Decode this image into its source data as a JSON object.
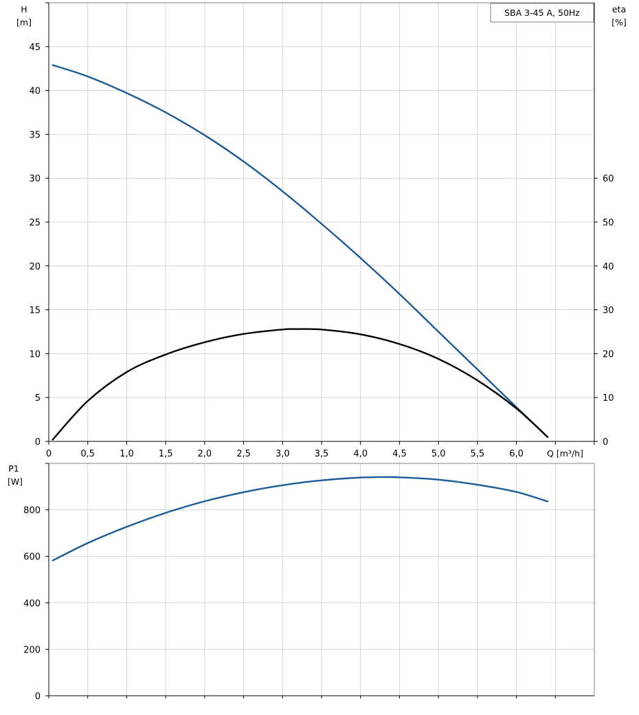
{
  "chart_data": [
    {
      "type": "line",
      "panel": "head-efficiency",
      "legend": "SBA 3-45 A, 50Hz",
      "legend_placement": "top-right",
      "xlabel": "Q [m³/h]",
      "xlim": [
        0,
        7.0
      ],
      "x_ticks": [
        "0",
        "0,5",
        "1,0",
        "1,5",
        "2,0",
        "2,5",
        "3,0",
        "3,5",
        "4,0",
        "4,5",
        "5,0",
        "5,5",
        "6,0"
      ],
      "x_tick_values": [
        0,
        0.5,
        1.0,
        1.5,
        2.0,
        2.5,
        3.0,
        3.5,
        4.0,
        4.5,
        5.0,
        5.5,
        6.0
      ],
      "y_left": {
        "label": "H",
        "unit": "[m]",
        "ylim": [
          0,
          50
        ],
        "ticks": [
          "0",
          "5",
          "10",
          "15",
          "20",
          "25",
          "30",
          "35",
          "40",
          "45"
        ],
        "tick_values": [
          0,
          5,
          10,
          15,
          20,
          25,
          30,
          35,
          40,
          45
        ]
      },
      "y_right": {
        "label": "eta",
        "unit": "[%]",
        "ylim": [
          0,
          100
        ],
        "ticks": [
          "0",
          "10",
          "20",
          "30",
          "40",
          "50",
          "60"
        ],
        "tick_values": [
          0,
          10,
          20,
          30,
          40,
          50,
          60
        ]
      },
      "grid": true,
      "series": [
        {
          "axis": "left",
          "color": "#1c5a96",
          "x": [
            0.05,
            0.5,
            1.0,
            1.5,
            2.0,
            2.5,
            3.0,
            3.5,
            4.0,
            4.5,
            5.0,
            5.5,
            6.0,
            6.4
          ],
          "y": [
            42.9,
            41.6,
            39.7,
            37.5,
            34.9,
            31.9,
            28.5,
            24.8,
            20.9,
            16.8,
            12.5,
            8.2,
            3.9,
            0.5
          ]
        },
        {
          "axis": "right",
          "color": "#000000",
          "x": [
            0.05,
            0.5,
            1.0,
            1.5,
            2.0,
            2.5,
            3.0,
            3.2,
            3.5,
            4.0,
            4.5,
            5.0,
            5.5,
            6.0,
            6.4
          ],
          "y": [
            0.4,
            9.2,
            15.8,
            19.8,
            22.6,
            24.5,
            25.5,
            25.6,
            25.5,
            24.4,
            22.2,
            18.8,
            13.9,
            7.5,
            1.0
          ]
        }
      ]
    },
    {
      "type": "line",
      "panel": "power",
      "xlim": [
        0,
        7.0
      ],
      "y_left": {
        "label": "P1",
        "unit": "[W]",
        "ylim": [
          0,
          1000
        ],
        "ticks": [
          "0",
          "200",
          "400",
          "600",
          "800"
        ],
        "tick_values": [
          0,
          200,
          400,
          600,
          800
        ]
      },
      "grid": true,
      "series": [
        {
          "axis": "left",
          "color": "#1c5a96",
          "x": [
            0.05,
            0.5,
            1.0,
            1.5,
            2.0,
            2.5,
            3.0,
            3.5,
            4.0,
            4.3,
            4.5,
            5.0,
            5.5,
            6.0,
            6.4
          ],
          "y": [
            582,
            657,
            727,
            787,
            837,
            876,
            906,
            927,
            939,
            941,
            940,
            930,
            908,
            877,
            836
          ]
        }
      ]
    }
  ]
}
